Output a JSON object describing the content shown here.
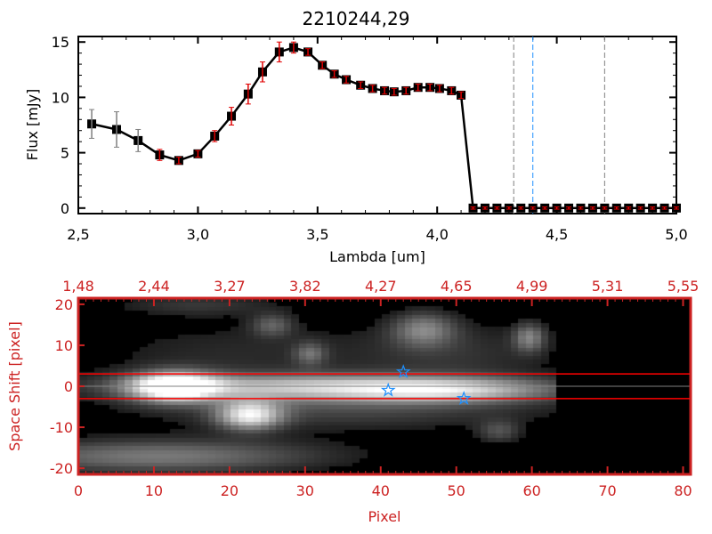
{
  "chart_data": [
    {
      "type": "line",
      "title": "2210244,29",
      "xlabel": "Lambda [um]",
      "ylabel": "Flux [mJy]",
      "xlim": [
        2.5,
        5.0
      ],
      "ylim": [
        -0.5,
        15.5
      ],
      "xticks": [
        "2,5",
        "3,0",
        "3,5",
        "4,0",
        "4,5",
        "5,0"
      ],
      "yticks": [
        "0",
        "5",
        "10",
        "15"
      ],
      "x": [
        2.556,
        2.66,
        2.75,
        2.84,
        2.92,
        3.0,
        3.07,
        3.14,
        3.21,
        3.27,
        3.34,
        3.4,
        3.46,
        3.52,
        3.57,
        3.62,
        3.68,
        3.73,
        3.78,
        3.82,
        3.87,
        3.92,
        3.97,
        4.01,
        4.06,
        4.1,
        4.15,
        4.2,
        4.25,
        4.3,
        4.35,
        4.4,
        4.45,
        4.5,
        4.55,
        4.6,
        4.65,
        4.7,
        4.75,
        4.8,
        4.85,
        4.9,
        4.95,
        5.0
      ],
      "y": [
        7.6,
        7.1,
        6.1,
        4.8,
        4.3,
        4.9,
        6.5,
        8.3,
        10.3,
        12.3,
        14.1,
        14.5,
        14.1,
        12.9,
        12.1,
        11.6,
        11.1,
        10.8,
        10.6,
        10.5,
        10.6,
        10.9,
        10.9,
        10.8,
        10.6,
        10.2,
        0,
        0,
        0,
        0,
        0,
        0,
        0,
        0,
        0,
        0,
        0,
        0,
        0,
        0,
        0,
        0,
        0,
        0
      ],
      "yerr": [
        1.3,
        1.6,
        1.0,
        0.5,
        0.3,
        0.3,
        0.5,
        0.8,
        0.9,
        0.9,
        0.9,
        0.5,
        0.3,
        0.3,
        0.3,
        0.3,
        0.3,
        0.3,
        0.3,
        0.3,
        0.3,
        0.3,
        0.3,
        0.3,
        0.3,
        0.3,
        0.1,
        0.1,
        0.1,
        0.1,
        0.1,
        0.1,
        0.1,
        0.1,
        0.1,
        0.1,
        0.1,
        0.1,
        0.1,
        0.1,
        0.1,
        0.1,
        0.1,
        0.1
      ],
      "vlines": [
        {
          "x": 4.32,
          "color": "#808080"
        },
        {
          "x": 4.4,
          "color": "#1e90ff"
        },
        {
          "x": 4.7,
          "color": "#808080"
        }
      ],
      "colors": {
        "line": "#000000",
        "errorbar": "#e00000",
        "zero_line": "#e00000"
      }
    },
    {
      "type": "heatmap",
      "xlabel": "Pixel",
      "ylabel": "Space Shift [pixel]",
      "xlim": [
        0,
        81
      ],
      "ylim": [
        -21.5,
        21.5
      ],
      "xticks": [
        "0",
        "10",
        "20",
        "30",
        "40",
        "50",
        "60",
        "70",
        "80"
      ],
      "yticks": [
        "20",
        "10",
        "0",
        "-10",
        "-20"
      ],
      "top_xticks": [
        "1,48",
        "2,44",
        "3,27",
        "3,82",
        "4,27",
        "4,65",
        "4,99",
        "5,31",
        "5,55"
      ],
      "hlines": [
        {
          "y": 3,
          "color": "#ff0000"
        },
        {
          "y": -3,
          "color": "#ff0000"
        },
        {
          "y": 0,
          "color": "#808080"
        }
      ],
      "stars": [
        {
          "x": 43,
          "y": 3.5
        },
        {
          "x": 41,
          "y": -1
        },
        {
          "x": 51,
          "y": -3
        }
      ],
      "colors": {
        "axis": "#cc2222",
        "star": "#1e90ff"
      }
    }
  ]
}
